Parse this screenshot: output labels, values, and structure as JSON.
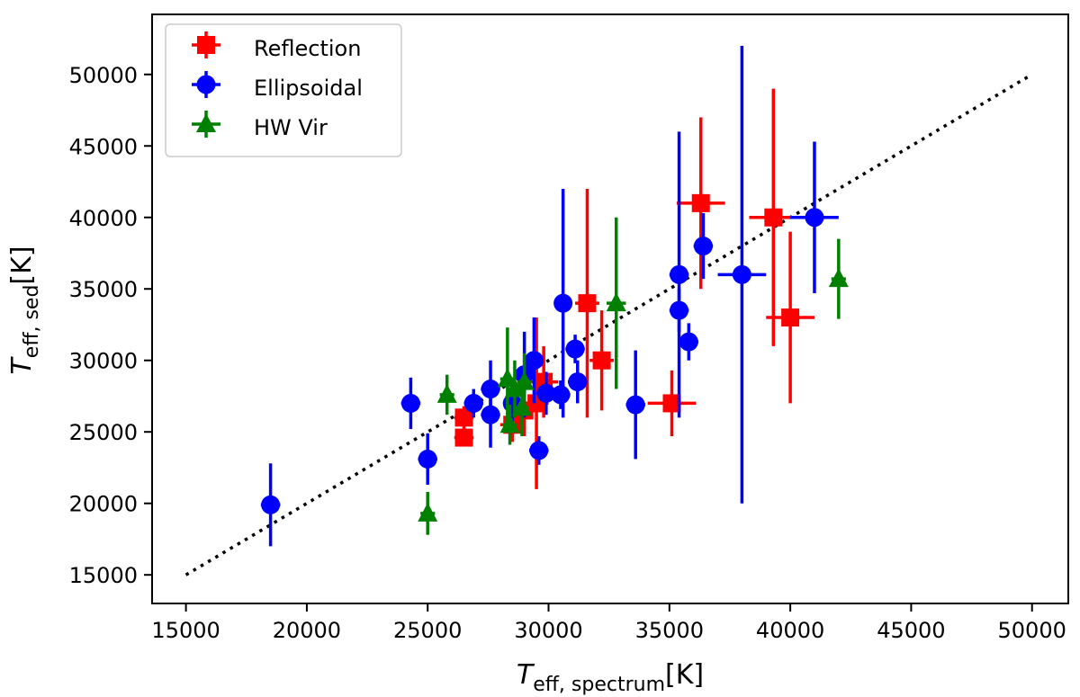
{
  "chart_data": {
    "type": "scatter",
    "title": "",
    "xlabel": {
      "main": "T",
      "sub": "eff, spectrum",
      "unit": "[K]"
    },
    "ylabel": {
      "main": "T",
      "sub": "eff, sed",
      "unit": "[K]"
    },
    "xlim": [
      13600,
      51500
    ],
    "ylim": [
      13000,
      54200
    ],
    "xticks": [
      15000,
      20000,
      25000,
      30000,
      35000,
      40000,
      45000,
      50000
    ],
    "yticks": [
      15000,
      20000,
      25000,
      30000,
      35000,
      40000,
      45000,
      50000
    ],
    "grid": false,
    "legend_position": "top-left",
    "reference_line": {
      "style": "dotted",
      "color": "#000000",
      "points": [
        [
          15000,
          15000
        ],
        [
          50000,
          50000
        ]
      ]
    },
    "series": [
      {
        "name": "Reflection",
        "color": "#ff0000",
        "marker": "square",
        "points": [
          {
            "x": 26500,
            "y": 26000,
            "xerr": 400,
            "yerr": 800
          },
          {
            "x": 26500,
            "y": 24600,
            "xerr": 400,
            "yerr": 600
          },
          {
            "x": 28500,
            "y": 25500,
            "xerr": 500,
            "yerr": 1200
          },
          {
            "x": 29000,
            "y": 26500,
            "xerr": 500,
            "yerr": 1800
          },
          {
            "x": 29500,
            "y": 27000,
            "xerr": 500,
            "yerr": 6000
          },
          {
            "x": 29800,
            "y": 28500,
            "xerr": 600,
            "yerr": 2500
          },
          {
            "x": 31600,
            "y": 34000,
            "xerr": 500,
            "yerr": 8000
          },
          {
            "x": 32200,
            "y": 30000,
            "xerr": 500,
            "yerr": 3500
          },
          {
            "x": 35100,
            "y": 27000,
            "xerr": 1000,
            "yerr": 2300
          },
          {
            "x": 36300,
            "y": 41000,
            "xerr": 1000,
            "yerr": 6000
          },
          {
            "x": 39300,
            "y": 40000,
            "xerr": 1000,
            "yerr": 9000
          },
          {
            "x": 40000,
            "y": 33000,
            "xerr": 1000,
            "yerr": 6000
          }
        ]
      },
      {
        "name": "Ellipsoidal",
        "color": "#0000ff",
        "marker": "circle",
        "points": [
          {
            "x": 18500,
            "y": 19900,
            "xerr": 400,
            "yerr": 2900
          },
          {
            "x": 24300,
            "y": 27000,
            "xerr": 400,
            "yerr": 1800
          },
          {
            "x": 25000,
            "y": 23100,
            "xerr": 400,
            "yerr": 1800
          },
          {
            "x": 26900,
            "y": 27000,
            "xerr": 400,
            "yerr": 1000
          },
          {
            "x": 27600,
            "y": 26200,
            "xerr": 400,
            "yerr": 2300
          },
          {
            "x": 27600,
            "y": 28000,
            "xerr": 400,
            "yerr": 2000
          },
          {
            "x": 28500,
            "y": 27000,
            "xerr": 300,
            "yerr": 1500
          },
          {
            "x": 29000,
            "y": 29000,
            "xerr": 300,
            "yerr": 3000
          },
          {
            "x": 29400,
            "y": 30000,
            "xerr": 300,
            "yerr": 3000
          },
          {
            "x": 29600,
            "y": 23700,
            "xerr": 400,
            "yerr": 1000
          },
          {
            "x": 29900,
            "y": 27700,
            "xerr": 400,
            "yerr": 1500
          },
          {
            "x": 30500,
            "y": 27600,
            "xerr": 400,
            "yerr": 1000
          },
          {
            "x": 30600,
            "y": 34000,
            "xerr": 300,
            "yerr": 8000
          },
          {
            "x": 31100,
            "y": 30800,
            "xerr": 400,
            "yerr": 1000
          },
          {
            "x": 31200,
            "y": 28500,
            "xerr": 400,
            "yerr": 1500
          },
          {
            "x": 33600,
            "y": 26900,
            "xerr": 400,
            "yerr": 3800
          },
          {
            "x": 35400,
            "y": 36000,
            "xerr": 400,
            "yerr": 10000
          },
          {
            "x": 35400,
            "y": 33500,
            "xerr": 400,
            "yerr": 1500
          },
          {
            "x": 35800,
            "y": 31300,
            "xerr": 400,
            "yerr": 1300
          },
          {
            "x": 36400,
            "y": 38000,
            "xerr": 400,
            "yerr": 2300
          },
          {
            "x": 38000,
            "y": 36000,
            "xerr": 1000,
            "yerr": 16000
          },
          {
            "x": 41000,
            "y": 40000,
            "xerr": 1000,
            "yerr": 5300
          }
        ]
      },
      {
        "name": "HW Vir",
        "color": "#008000",
        "marker": "triangle",
        "points": [
          {
            "x": 25000,
            "y": 19300,
            "xerr": 300,
            "yerr": 1500
          },
          {
            "x": 25800,
            "y": 27600,
            "xerr": 300,
            "yerr": 1400
          },
          {
            "x": 28300,
            "y": 28700,
            "xerr": 300,
            "yerr": 3600
          },
          {
            "x": 28400,
            "y": 25500,
            "xerr": 300,
            "yerr": 1400
          },
          {
            "x": 28600,
            "y": 28000,
            "xerr": 300,
            "yerr": 2000
          },
          {
            "x": 28900,
            "y": 26700,
            "xerr": 300,
            "yerr": 2000
          },
          {
            "x": 29000,
            "y": 28500,
            "xerr": 300,
            "yerr": 2000
          },
          {
            "x": 32800,
            "y": 34000,
            "xerr": 400,
            "yerr": 6000
          },
          {
            "x": 42000,
            "y": 35700,
            "xerr": 300,
            "yerr": 2800
          }
        ]
      }
    ]
  }
}
